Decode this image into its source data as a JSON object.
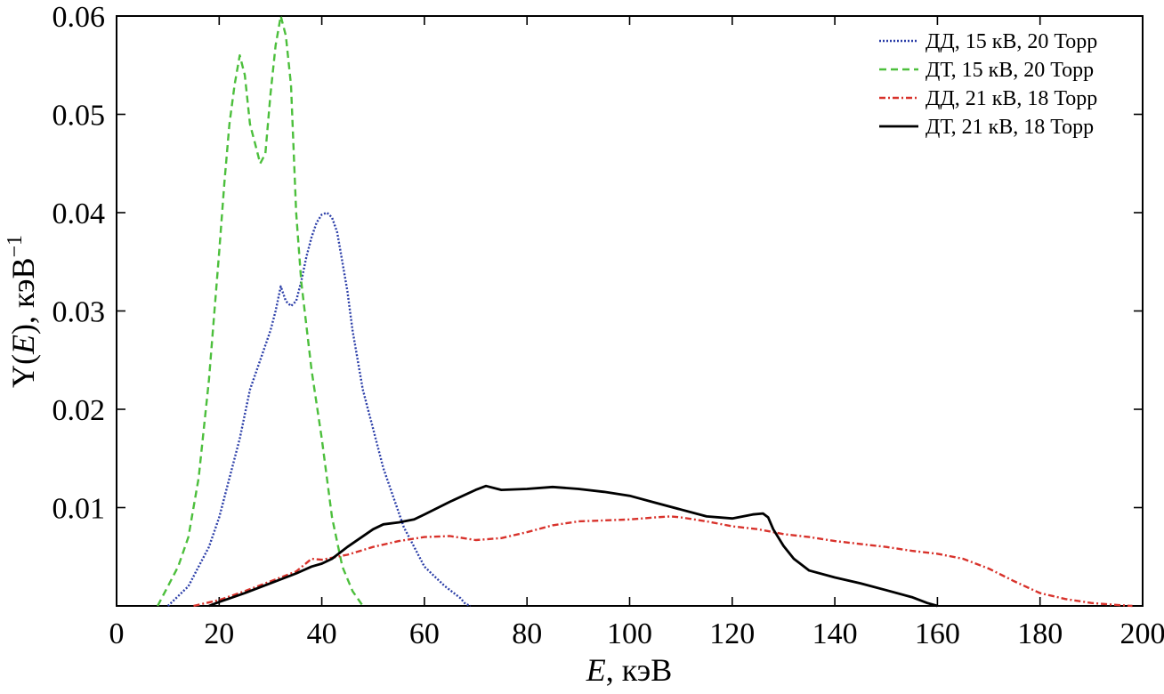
{
  "chart_data": {
    "type": "line",
    "title": "",
    "xlabel_var": "E",
    "xlabel_unit": ", кэВ",
    "ylabel_var_pre": "Y(",
    "ylabel_var_mid": "E",
    "ylabel_var_post": "), кэВ",
    "ylabel_sup": "−1",
    "xlim": [
      0,
      200
    ],
    "ylim": [
      0,
      0.06
    ],
    "xticks": [
      0,
      20,
      40,
      60,
      80,
      100,
      120,
      140,
      160,
      180,
      200
    ],
    "xtick_labels": [
      "0",
      "20",
      "40",
      "60",
      "80",
      "100",
      "120",
      "140",
      "160",
      "180",
      "200"
    ],
    "yticks": [
      0.01,
      0.02,
      0.03,
      0.04,
      0.05,
      0.06
    ],
    "ytick_labels": [
      "0.01",
      "0.02",
      "0.03",
      "0.04",
      "0.05",
      "0.06"
    ],
    "legend_position": "top-right",
    "series": [
      {
        "name": "ДД, 15 кВ, 20 Торр",
        "color": "#2b3ea8",
        "style": "dotted",
        "x": [
          10,
          12,
          14,
          16,
          18,
          20,
          22,
          24,
          26,
          28,
          30,
          31,
          32,
          33,
          34,
          35,
          36,
          37,
          38,
          39,
          40,
          41,
          42,
          43,
          44,
          45,
          46,
          48,
          50,
          52,
          54,
          56,
          58,
          60,
          62,
          64,
          66,
          67,
          68,
          69
        ],
        "y": [
          0.0,
          0.001,
          0.002,
          0.004,
          0.006,
          0.009,
          0.013,
          0.017,
          0.022,
          0.025,
          0.028,
          0.03,
          0.0325,
          0.031,
          0.0305,
          0.031,
          0.033,
          0.0355,
          0.0375,
          0.039,
          0.0398,
          0.04,
          0.0395,
          0.038,
          0.035,
          0.032,
          0.028,
          0.022,
          0.018,
          0.014,
          0.011,
          0.008,
          0.006,
          0.004,
          0.003,
          0.002,
          0.0012,
          0.0008,
          0.0002,
          0.0
        ]
      },
      {
        "name": "ДТ, 15 кВ, 20 Торр",
        "color": "#4cbf3c",
        "style": "dashed",
        "x": [
          8,
          10,
          12,
          14,
          16,
          18,
          20,
          21,
          22,
          23,
          24,
          25,
          26,
          27,
          28,
          29,
          30,
          31,
          32,
          33,
          34,
          35,
          36,
          38,
          40,
          42,
          44,
          46,
          48
        ],
        "y": [
          0.0,
          0.002,
          0.004,
          0.007,
          0.013,
          0.023,
          0.036,
          0.043,
          0.049,
          0.053,
          0.056,
          0.054,
          0.049,
          0.047,
          0.045,
          0.046,
          0.052,
          0.057,
          0.06,
          0.058,
          0.053,
          0.04,
          0.033,
          0.024,
          0.017,
          0.009,
          0.004,
          0.0015,
          0.0
        ]
      },
      {
        "name": "ДД, 21 кВ, 18 Торр",
        "color": "#d8322b",
        "style": "dashdot",
        "x": [
          15,
          20,
          25,
          30,
          35,
          38,
          40,
          45,
          50,
          55,
          60,
          65,
          70,
          75,
          80,
          85,
          90,
          95,
          100,
          105,
          108,
          110,
          115,
          120,
          125,
          130,
          135,
          140,
          145,
          150,
          155,
          160,
          165,
          170,
          175,
          180,
          185,
          190,
          195,
          198
        ],
        "y": [
          0.0,
          0.0006,
          0.0015,
          0.0025,
          0.0035,
          0.0048,
          0.0047,
          0.0052,
          0.006,
          0.0066,
          0.007,
          0.0071,
          0.0067,
          0.0069,
          0.0075,
          0.0082,
          0.0086,
          0.0087,
          0.0088,
          0.009,
          0.0091,
          0.009,
          0.0086,
          0.0081,
          0.0078,
          0.0073,
          0.007,
          0.0066,
          0.0063,
          0.006,
          0.0056,
          0.0053,
          0.0048,
          0.0038,
          0.0025,
          0.0013,
          0.0007,
          0.0003,
          0.0001,
          0.0
        ]
      },
      {
        "name": "ДТ, 21 кВ, 18 Торр",
        "color": "#000000",
        "style": "solid",
        "x": [
          18,
          20,
          25,
          30,
          35,
          38,
          40,
          42,
          45,
          50,
          52,
          55,
          58,
          60,
          65,
          70,
          72,
          75,
          80,
          85,
          90,
          95,
          100,
          105,
          110,
          115,
          120,
          124,
          126,
          127,
          128,
          130,
          132,
          135,
          140,
          145,
          150,
          155,
          158,
          160
        ],
        "y": [
          0.0,
          0.0004,
          0.0013,
          0.0023,
          0.0033,
          0.004,
          0.0043,
          0.0048,
          0.006,
          0.0078,
          0.0083,
          0.0085,
          0.0088,
          0.0093,
          0.0106,
          0.0118,
          0.0122,
          0.0118,
          0.0119,
          0.0121,
          0.0119,
          0.0116,
          0.0112,
          0.0105,
          0.0098,
          0.0091,
          0.0089,
          0.0093,
          0.0094,
          0.009,
          0.0078,
          0.0061,
          0.0048,
          0.0036,
          0.0029,
          0.0023,
          0.0016,
          0.0009,
          0.0003,
          0.0
        ]
      }
    ]
  }
}
